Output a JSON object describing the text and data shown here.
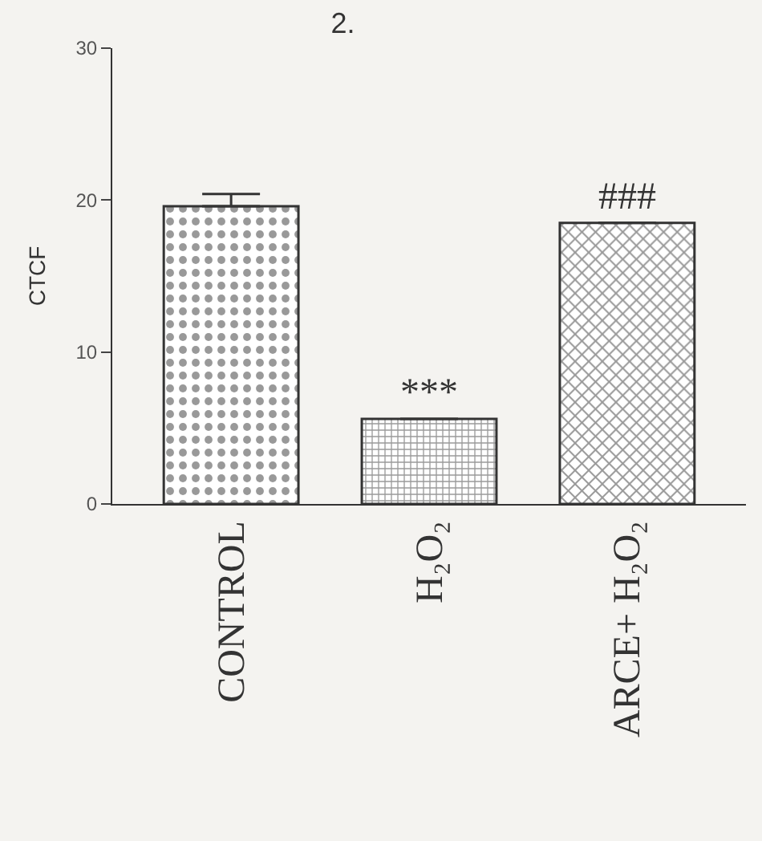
{
  "chart_data": {
    "type": "bar",
    "title": "2.",
    "ylabel": "CTCF",
    "categories": [
      "CONTROL",
      "H₂O₂",
      "ARCE+ H₂O₂"
    ],
    "values": [
      19.6,
      5.6,
      18.5
    ],
    "errors": [
      0.8,
      null,
      null
    ],
    "colors": [
      "#333333",
      "#333333",
      "#333333"
    ],
    "value_labels": [
      null,
      "***",
      "###"
    ],
    "ylim": [
      0,
      30
    ],
    "yticks": [
      0,
      10,
      20,
      30
    ],
    "grid": false
  }
}
